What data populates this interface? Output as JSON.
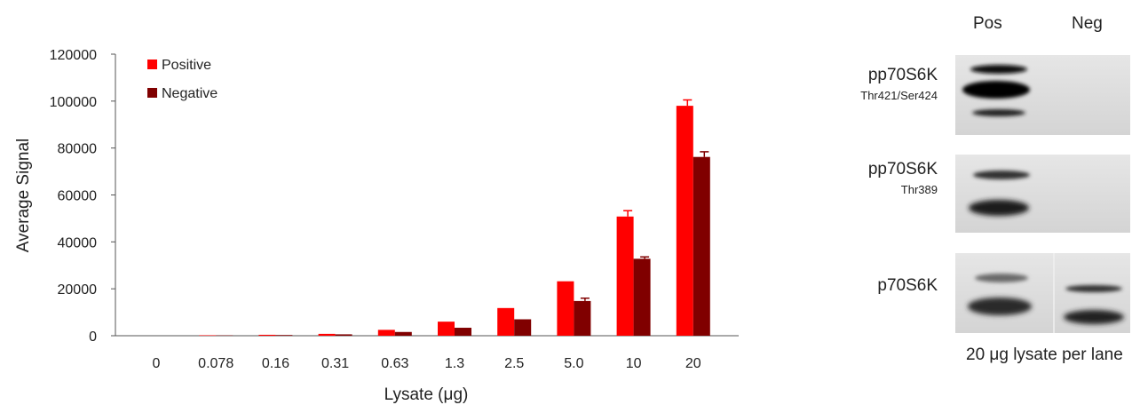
{
  "chart_data": {
    "type": "bar",
    "title": "",
    "xlabel": "Lysate (μg)",
    "ylabel": "Average Signal",
    "ylim": [
      0,
      120000
    ],
    "yticks": [
      0,
      20000,
      40000,
      60000,
      80000,
      100000,
      120000
    ],
    "categories": [
      "0",
      "0.078",
      "0.16",
      "0.31",
      "0.63",
      "1.3",
      "2.5",
      "5.0",
      "10",
      "20"
    ],
    "series": [
      {
        "name": "Positive",
        "color": "#ff0000",
        "values": [
          0,
          200,
          400,
          800,
          2500,
          6000,
          11800,
          23200,
          50800,
          98000
        ],
        "errors": [
          0,
          0,
          0,
          0,
          0,
          0,
          0,
          0,
          2500,
          2500
        ]
      },
      {
        "name": "Negative",
        "color": "#800000",
        "values": [
          0,
          150,
          300,
          600,
          1600,
          3400,
          7000,
          14800,
          32800,
          76200
        ],
        "errors": [
          0,
          0,
          0,
          0,
          0,
          0,
          0,
          1200,
          800,
          2200
        ]
      }
    ],
    "legend": "top-left",
    "grid": false
  },
  "blot": {
    "lane_labels": [
      "Pos",
      "Neg"
    ],
    "panels": [
      {
        "antibody": "pp70S6K",
        "site": "Thr421/Ser424"
      },
      {
        "antibody": "pp70S6K",
        "site": "Thr389"
      },
      {
        "antibody": "p70S6K",
        "site": ""
      }
    ],
    "footnote": "20 μg lysate per lane"
  }
}
